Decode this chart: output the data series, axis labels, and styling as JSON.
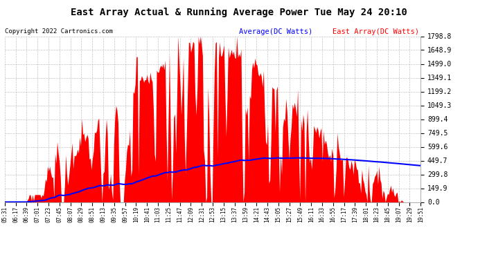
{
  "title": "East Array Actual & Running Average Power Tue May 24 20:10",
  "copyright": "Copyright 2022 Cartronics.com",
  "legend_avg": "Average(DC Watts)",
  "legend_east": "East Array(DC Watts)",
  "ymax": 1798.8,
  "ymin": 0.0,
  "yticks": [
    0.0,
    149.9,
    299.8,
    449.7,
    599.6,
    749.5,
    899.4,
    1049.3,
    1199.2,
    1349.1,
    1499.0,
    1648.9,
    1798.8
  ],
  "background_color": "#ffffff",
  "grid_color": "#aaaaaa",
  "fill_color": "#ff0000",
  "line_color": "#0000ff",
  "title_color": "#000000",
  "copyright_color": "#000000",
  "avg_legend_color": "#0000ff",
  "east_legend_color": "#ff0000",
  "x_time_labels": [
    "05:31",
    "06:17",
    "06:39",
    "07:01",
    "07:23",
    "07:45",
    "08:07",
    "08:29",
    "08:51",
    "09:13",
    "09:35",
    "09:57",
    "10:19",
    "10:41",
    "11:03",
    "11:25",
    "11:47",
    "12:09",
    "12:31",
    "12:53",
    "13:15",
    "13:37",
    "13:59",
    "14:21",
    "14:43",
    "15:05",
    "15:27",
    "15:49",
    "16:11",
    "16:33",
    "16:55",
    "17:17",
    "17:39",
    "18:01",
    "18:23",
    "18:45",
    "19:07",
    "19:29",
    "19:51"
  ],
  "figsize": [
    6.9,
    3.75
  ],
  "dpi": 100,
  "peak_power": 1700,
  "avg_peak": 480,
  "n_points": 390
}
